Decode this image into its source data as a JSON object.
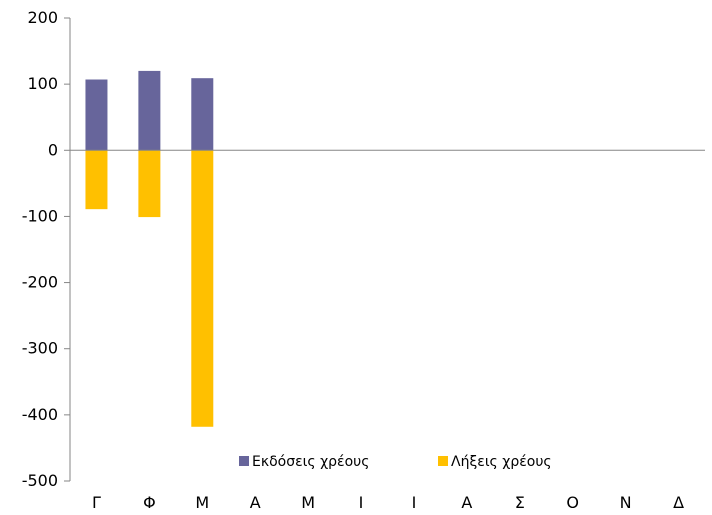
{
  "chart_data": {
    "type": "bar",
    "stacked": true,
    "categories": [
      "Γ",
      "Φ",
      "Μ",
      "Α",
      "Μ",
      "Ι",
      "Ι",
      "Α",
      "Σ",
      "Ο",
      "Ν",
      "Δ"
    ],
    "series": [
      {
        "name": "Εκδόσεις χρέους",
        "color": "#67659b",
        "values": [
          107,
          120,
          109,
          null,
          null,
          null,
          null,
          null,
          null,
          null,
          null,
          null
        ]
      },
      {
        "name": "Λήξεις χρέους",
        "color": "#ffc000",
        "values": [
          -89,
          -101,
          -418,
          null,
          null,
          null,
          null,
          null,
          null,
          null,
          null,
          null
        ]
      }
    ],
    "ylim": [
      -500,
      200
    ],
    "yticks": [
      200,
      100,
      0,
      -100,
      -200,
      -300,
      -400,
      -500
    ],
    "ytick_labels": [
      "200",
      "100",
      "0",
      "-100",
      "-200",
      "-300",
      "-400",
      "-500"
    ],
    "grid": false,
    "legend_position": "bottom-center",
    "title": "",
    "xlabel": "",
    "ylabel": ""
  }
}
